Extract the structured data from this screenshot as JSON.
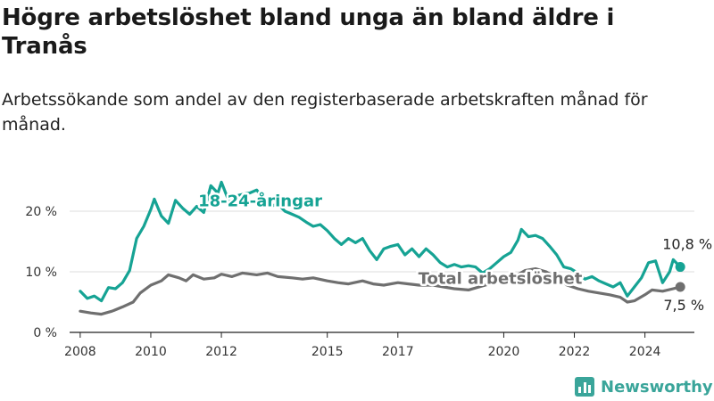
{
  "title": "Högre arbetslöshet bland unga än bland äldre i Tranås",
  "subtitle": "Arbetssökande som andel av den registerbaserade arbetskraften månad för månad.",
  "brand": {
    "name": "Newsworthy",
    "icon": "newsworthy-logo-icon"
  },
  "colors": {
    "youth": "#16a394",
    "total": "#6f6f6f",
    "grid": "#dddddd",
    "brand": "#3aa59a"
  },
  "chart_data": {
    "type": "line",
    "xlim": [
      2007.7,
      2025.4
    ],
    "ylim": [
      0,
      25
    ],
    "x_ticks": [
      {
        "value": 2008,
        "label": "2008"
      },
      {
        "value": 2010,
        "label": "2010"
      },
      {
        "value": 2012,
        "label": "2012"
      },
      {
        "value": 2015,
        "label": "2015"
      },
      {
        "value": 2017,
        "label": "2017"
      },
      {
        "value": 2020,
        "label": "2020"
      },
      {
        "value": 2022,
        "label": "2022"
      },
      {
        "value": 2024,
        "label": "2024"
      }
    ],
    "y_ticks": [
      {
        "value": 0,
        "label": "0 %"
      },
      {
        "value": 10,
        "label": "10 %"
      },
      {
        "value": 20,
        "label": "20 %"
      }
    ],
    "grid": true,
    "series": [
      {
        "name": "18-24-åringar",
        "end_label": "10,8 %",
        "points": [
          [
            2008.0,
            6.8
          ],
          [
            2008.2,
            5.6
          ],
          [
            2008.4,
            6.0
          ],
          [
            2008.6,
            5.2
          ],
          [
            2008.8,
            7.4
          ],
          [
            2009.0,
            7.2
          ],
          [
            2009.2,
            8.2
          ],
          [
            2009.4,
            10.2
          ],
          [
            2009.6,
            15.5
          ],
          [
            2009.8,
            17.5
          ],
          [
            2010.0,
            20.3
          ],
          [
            2010.1,
            22.0
          ],
          [
            2010.3,
            19.2
          ],
          [
            2010.5,
            18.0
          ],
          [
            2010.7,
            21.8
          ],
          [
            2010.9,
            20.5
          ],
          [
            2011.1,
            19.5
          ],
          [
            2011.3,
            20.8
          ],
          [
            2011.5,
            19.8
          ],
          [
            2011.7,
            24.2
          ],
          [
            2011.9,
            23.0
          ],
          [
            2012.0,
            24.8
          ],
          [
            2012.2,
            21.8
          ],
          [
            2012.4,
            22.5
          ],
          [
            2012.6,
            22.8
          ],
          [
            2012.8,
            23.0
          ],
          [
            2013.0,
            23.5
          ],
          [
            2013.2,
            22.0
          ],
          [
            2013.4,
            20.8
          ],
          [
            2013.6,
            21.2
          ],
          [
            2013.8,
            20.0
          ],
          [
            2014.0,
            19.5
          ],
          [
            2014.2,
            19.0
          ],
          [
            2014.4,
            18.2
          ],
          [
            2014.6,
            17.5
          ],
          [
            2014.8,
            17.8
          ],
          [
            2015.0,
            16.8
          ],
          [
            2015.2,
            15.5
          ],
          [
            2015.4,
            14.5
          ],
          [
            2015.6,
            15.5
          ],
          [
            2015.8,
            14.8
          ],
          [
            2016.0,
            15.5
          ],
          [
            2016.2,
            13.5
          ],
          [
            2016.4,
            12.0
          ],
          [
            2016.6,
            13.8
          ],
          [
            2016.8,
            14.2
          ],
          [
            2017.0,
            14.5
          ],
          [
            2017.2,
            12.8
          ],
          [
            2017.4,
            13.8
          ],
          [
            2017.6,
            12.5
          ],
          [
            2017.8,
            13.8
          ],
          [
            2018.0,
            12.8
          ],
          [
            2018.2,
            11.5
          ],
          [
            2018.4,
            10.8
          ],
          [
            2018.6,
            11.2
          ],
          [
            2018.8,
            10.8
          ],
          [
            2019.0,
            11.0
          ],
          [
            2019.2,
            10.8
          ],
          [
            2019.4,
            9.8
          ],
          [
            2019.6,
            10.5
          ],
          [
            2019.8,
            11.5
          ],
          [
            2020.0,
            12.5
          ],
          [
            2020.2,
            13.2
          ],
          [
            2020.4,
            15.2
          ],
          [
            2020.5,
            17.0
          ],
          [
            2020.7,
            15.8
          ],
          [
            2020.9,
            16.0
          ],
          [
            2021.1,
            15.5
          ],
          [
            2021.3,
            14.2
          ],
          [
            2021.5,
            12.8
          ],
          [
            2021.7,
            10.8
          ],
          [
            2021.9,
            10.5
          ],
          [
            2022.1,
            9.8
          ],
          [
            2022.3,
            8.8
          ],
          [
            2022.5,
            9.2
          ],
          [
            2022.7,
            8.5
          ],
          [
            2022.9,
            8.0
          ],
          [
            2023.1,
            7.5
          ],
          [
            2023.3,
            8.2
          ],
          [
            2023.5,
            6.0
          ],
          [
            2023.7,
            7.5
          ],
          [
            2023.9,
            9.0
          ],
          [
            2024.1,
            11.5
          ],
          [
            2024.3,
            11.8
          ],
          [
            2024.5,
            8.2
          ],
          [
            2024.7,
            10.0
          ],
          [
            2024.8,
            12.0
          ],
          [
            2025.0,
            10.8
          ]
        ]
      },
      {
        "name": "Total arbetslöshet",
        "end_label": "7,5 %",
        "points": [
          [
            2008.0,
            3.5
          ],
          [
            2008.3,
            3.2
          ],
          [
            2008.6,
            3.0
          ],
          [
            2008.9,
            3.5
          ],
          [
            2009.2,
            4.2
          ],
          [
            2009.5,
            5.0
          ],
          [
            2009.7,
            6.5
          ],
          [
            2010.0,
            7.8
          ],
          [
            2010.3,
            8.5
          ],
          [
            2010.5,
            9.5
          ],
          [
            2010.8,
            9.0
          ],
          [
            2011.0,
            8.5
          ],
          [
            2011.2,
            9.5
          ],
          [
            2011.5,
            8.8
          ],
          [
            2011.8,
            9.0
          ],
          [
            2012.0,
            9.6
          ],
          [
            2012.3,
            9.2
          ],
          [
            2012.6,
            9.8
          ],
          [
            2013.0,
            9.5
          ],
          [
            2013.3,
            9.8
          ],
          [
            2013.6,
            9.2
          ],
          [
            2014.0,
            9.0
          ],
          [
            2014.3,
            8.8
          ],
          [
            2014.6,
            9.0
          ],
          [
            2015.0,
            8.5
          ],
          [
            2015.3,
            8.2
          ],
          [
            2015.6,
            8.0
          ],
          [
            2016.0,
            8.5
          ],
          [
            2016.3,
            8.0
          ],
          [
            2016.6,
            7.8
          ],
          [
            2017.0,
            8.2
          ],
          [
            2017.3,
            8.0
          ],
          [
            2017.6,
            7.8
          ],
          [
            2018.0,
            7.8
          ],
          [
            2018.3,
            7.5
          ],
          [
            2018.6,
            7.2
          ],
          [
            2019.0,
            7.0
          ],
          [
            2019.3,
            7.5
          ],
          [
            2019.6,
            8.0
          ],
          [
            2020.0,
            8.8
          ],
          [
            2020.3,
            9.2
          ],
          [
            2020.6,
            10.2
          ],
          [
            2020.9,
            10.5
          ],
          [
            2021.2,
            10.0
          ],
          [
            2021.5,
            9.0
          ],
          [
            2021.8,
            7.8
          ],
          [
            2022.1,
            7.2
          ],
          [
            2022.4,
            6.8
          ],
          [
            2022.7,
            6.5
          ],
          [
            2023.0,
            6.2
          ],
          [
            2023.3,
            5.8
          ],
          [
            2023.5,
            5.0
          ],
          [
            2023.7,
            5.2
          ],
          [
            2024.0,
            6.2
          ],
          [
            2024.2,
            7.0
          ],
          [
            2024.5,
            6.8
          ],
          [
            2024.8,
            7.2
          ],
          [
            2025.0,
            7.5
          ]
        ]
      }
    ],
    "series_label_positions": {
      "youth": {
        "x": 2013.1,
        "y": 20.8
      },
      "total": {
        "x": 2019.9,
        "y": 8.0
      }
    }
  }
}
